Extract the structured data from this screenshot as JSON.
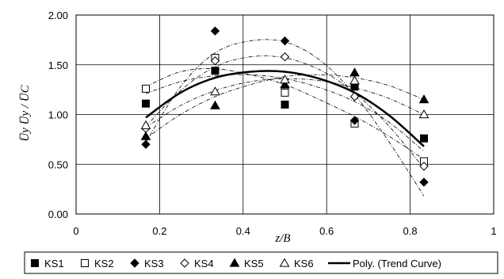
{
  "chart_data": {
    "type": "scatter",
    "xlabel": "z/B",
    "ylabel": "U̅y U̅y / U̅C",
    "xlim": [
      0,
      1
    ],
    "ylim": [
      0,
      2
    ],
    "xticks": [
      "0",
      "0.2",
      "0.4",
      "0.6",
      "0.8",
      "1"
    ],
    "yticks": [
      "0.00",
      "0.50",
      "1.00",
      "1.50",
      "2.00"
    ],
    "grid": true,
    "legend_position": "bottom",
    "x": [
      0.167,
      0.333,
      0.5,
      0.667,
      0.833
    ],
    "series": [
      {
        "name": "KS1",
        "marker": "square-filled",
        "values": [
          1.11,
          1.44,
          1.1,
          1.28,
          0.76
        ]
      },
      {
        "name": "KS2",
        "marker": "square-open",
        "values": [
          1.26,
          1.57,
          1.22,
          0.91,
          0.53
        ]
      },
      {
        "name": "KS3",
        "marker": "diamond-filled",
        "values": [
          0.7,
          1.84,
          1.74,
          0.94,
          0.32
        ]
      },
      {
        "name": "KS4",
        "marker": "diamond-open",
        "values": [
          0.86,
          1.54,
          1.58,
          1.18,
          0.48
        ]
      },
      {
        "name": "KS5",
        "marker": "triangle-filled",
        "values": [
          0.78,
          1.09,
          1.3,
          1.42,
          1.15
        ]
      },
      {
        "name": "KS6",
        "marker": "triangle-open",
        "values": [
          0.89,
          1.23,
          1.35,
          1.34,
          1.0
        ]
      }
    ],
    "trend": {
      "name": "Poly. (Trend Curve)",
      "x": [
        0.167,
        0.25,
        0.333,
        0.417,
        0.5,
        0.583,
        0.667,
        0.75,
        0.833
      ],
      "values": [
        0.97,
        1.22,
        1.37,
        1.43,
        1.43,
        1.36,
        1.22,
        0.99,
        0.68
      ]
    },
    "series_trends": [
      {
        "x": [
          0.167,
          0.25,
          0.333,
          0.417,
          0.5,
          0.583,
          0.667,
          0.75,
          0.833
        ],
        "values": [
          1.21,
          1.33,
          1.39,
          1.4,
          1.36,
          1.27,
          1.13,
          0.92,
          0.63
        ]
      },
      {
        "x": [
          0.167,
          0.25,
          0.333,
          0.417,
          0.5,
          0.583,
          0.667,
          0.75,
          0.833
        ],
        "values": [
          1.28,
          1.43,
          1.46,
          1.4,
          1.3,
          1.15,
          0.98,
          0.78,
          0.55
        ]
      },
      {
        "x": [
          0.167,
          0.25,
          0.333,
          0.417,
          0.5,
          0.583,
          0.667,
          0.75,
          0.833
        ],
        "values": [
          0.72,
          1.28,
          1.62,
          1.74,
          1.73,
          1.55,
          1.2,
          0.72,
          0.18
        ]
      },
      {
        "x": [
          0.167,
          0.25,
          0.333,
          0.417,
          0.5,
          0.583,
          0.667,
          0.75,
          0.833
        ],
        "values": [
          0.88,
          1.24,
          1.48,
          1.58,
          1.57,
          1.45,
          1.22,
          0.88,
          0.46
        ]
      },
      {
        "x": [
          0.167,
          0.25,
          0.333,
          0.417,
          0.5,
          0.583,
          0.667,
          0.75,
          0.833
        ],
        "values": [
          0.76,
          1.0,
          1.18,
          1.3,
          1.38,
          1.4,
          1.37,
          1.29,
          1.15
        ]
      },
      {
        "x": [
          0.167,
          0.25,
          0.333,
          0.417,
          0.5,
          0.583,
          0.667,
          0.75,
          0.833
        ],
        "values": [
          0.87,
          1.09,
          1.24,
          1.33,
          1.36,
          1.34,
          1.27,
          1.16,
          1.0
        ]
      }
    ]
  }
}
